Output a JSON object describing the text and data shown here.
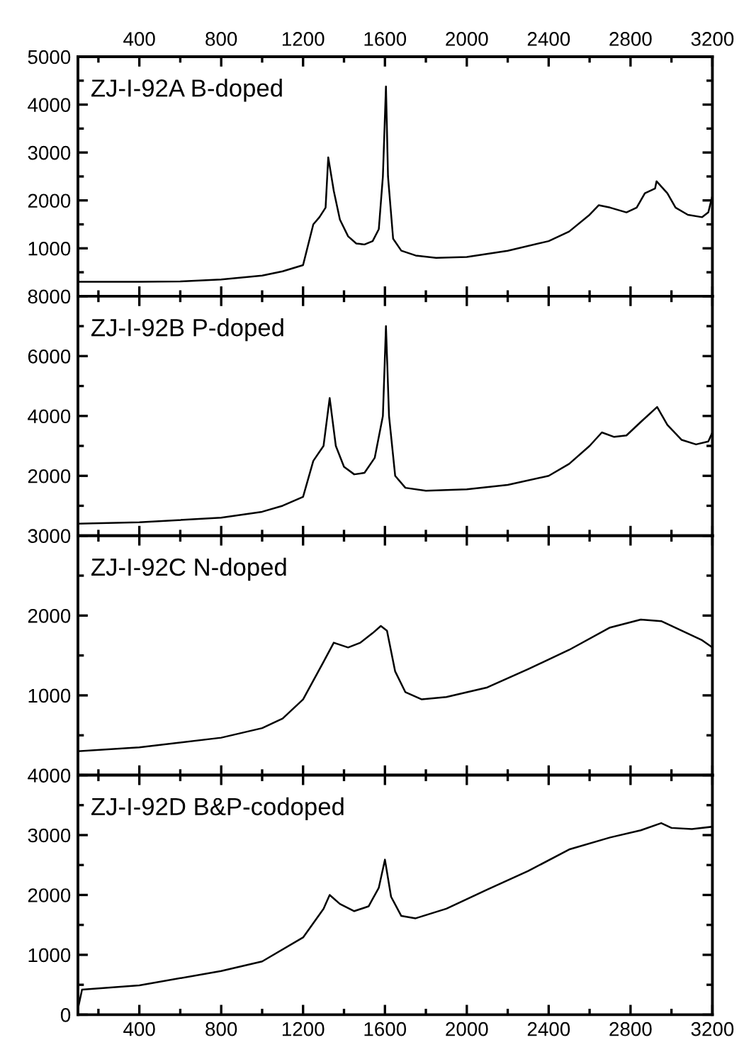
{
  "chart_data": [
    {
      "type": "line",
      "title": "ZJ-I-92A B-doped",
      "tick_labels": "y",
      "xlim": [
        100,
        3200
      ],
      "xticks": [
        400,
        800,
        1200,
        1600,
        2000,
        2400,
        2800,
        3200
      ],
      "x2lim": [
        100,
        3200
      ],
      "x2ticks": [
        400,
        800,
        1200,
        1600,
        2000,
        2400,
        2800,
        3200
      ],
      "ylim": [
        0,
        5000
      ],
      "yticks": [
        1000,
        2000,
        3000,
        4000,
        5000
      ],
      "grid": false,
      "legend": false,
      "series": [
        {
          "color": "#000000",
          "x": [
            100,
            400,
            600,
            800,
            1000,
            1100,
            1200,
            1250,
            1280,
            1310,
            1323,
            1350,
            1380,
            1420,
            1460,
            1500,
            1540,
            1570,
            1590,
            1605,
            1615,
            1640,
            1680,
            1750,
            1850,
            2000,
            2200,
            2400,
            2500,
            2600,
            2645,
            2700,
            2780,
            2830,
            2870,
            2920,
            2927,
            2980,
            3020,
            3080,
            3150,
            3180,
            3200
          ],
          "values": [
            300,
            300,
            310,
            350,
            430,
            520,
            650,
            1500,
            1650,
            1850,
            2900,
            2200,
            1600,
            1250,
            1100,
            1080,
            1150,
            1400,
            2500,
            4380,
            2500,
            1200,
            950,
            850,
            800,
            820,
            950,
            1150,
            1350,
            1700,
            1900,
            1850,
            1750,
            1850,
            2150,
            2250,
            2400,
            2150,
            1850,
            1700,
            1650,
            1750,
            2100
          ]
        }
      ]
    },
    {
      "type": "line",
      "title": "ZJ-I-92B P-doped",
      "tick_labels": "y",
      "xlim": [
        100,
        3200
      ],
      "xticks": [
        400,
        800,
        1200,
        1600,
        2000,
        2400,
        2800,
        3200
      ],
      "ylim": [
        0,
        8000
      ],
      "yticks": [
        2000,
        4000,
        6000,
        8000
      ],
      "grid": false,
      "legend": false,
      "series": [
        {
          "color": "#000000",
          "x": [
            100,
            400,
            800,
            1000,
            1100,
            1200,
            1250,
            1300,
            1330,
            1360,
            1400,
            1450,
            1500,
            1550,
            1590,
            1605,
            1620,
            1650,
            1700,
            1800,
            2000,
            2200,
            2400,
            2500,
            2600,
            2660,
            2720,
            2780,
            2850,
            2930,
            2980,
            3050,
            3120,
            3180,
            3200
          ],
          "values": [
            400,
            450,
            600,
            800,
            1000,
            1300,
            2500,
            3000,
            4600,
            3000,
            2300,
            2050,
            2100,
            2600,
            4000,
            7000,
            4000,
            2000,
            1600,
            1500,
            1550,
            1700,
            2000,
            2400,
            3000,
            3450,
            3300,
            3350,
            3800,
            4300,
            3700,
            3200,
            3050,
            3150,
            3450
          ]
        }
      ]
    },
    {
      "type": "line",
      "title": "ZJ-I-92C N-doped",
      "tick_labels": "y",
      "xlim": [
        100,
        3200
      ],
      "xticks": [
        400,
        800,
        1200,
        1600,
        2000,
        2400,
        2800,
        3200
      ],
      "ylim": [
        0,
        3000
      ],
      "yticks": [
        1000,
        2000,
        3000
      ],
      "grid": false,
      "legend": false,
      "series": [
        {
          "color": "#000000",
          "x": [
            100,
            400,
            800,
            1000,
            1100,
            1200,
            1300,
            1350,
            1420,
            1480,
            1540,
            1580,
            1610,
            1650,
            1700,
            1780,
            1900,
            2100,
            2300,
            2500,
            2700,
            2850,
            2950,
            3050,
            3150,
            3200
          ],
          "values": [
            300,
            350,
            470,
            590,
            710,
            950,
            1420,
            1660,
            1600,
            1660,
            1780,
            1870,
            1810,
            1300,
            1040,
            950,
            980,
            1100,
            1330,
            1570,
            1850,
            1950,
            1930,
            1810,
            1690,
            1600
          ]
        }
      ]
    },
    {
      "type": "line",
      "title": "ZJ-I-92D B&P-codoped",
      "xlim": [
        100,
        3200
      ],
      "xticks": [
        400,
        800,
        1200,
        1600,
        2000,
        2400,
        2800,
        3200
      ],
      "ylim": [
        0,
        4000
      ],
      "yticks": [
        0,
        1000,
        2000,
        3000,
        4000
      ],
      "grid": false,
      "legend": false,
      "series": [
        {
          "color": "#000000",
          "x": [
            100,
            120,
            400,
            800,
            1000,
            1200,
            1300,
            1330,
            1380,
            1450,
            1520,
            1570,
            1600,
            1630,
            1680,
            1750,
            1900,
            2100,
            2300,
            2500,
            2700,
            2850,
            2950,
            3000,
            3100,
            3200
          ],
          "values": [
            100,
            420,
            490,
            730,
            890,
            1290,
            1770,
            2000,
            1850,
            1730,
            1810,
            2120,
            2590,
            1970,
            1650,
            1610,
            1770,
            2090,
            2400,
            2760,
            2960,
            3080,
            3200,
            3120,
            3100,
            3140
          ]
        }
      ]
    }
  ]
}
